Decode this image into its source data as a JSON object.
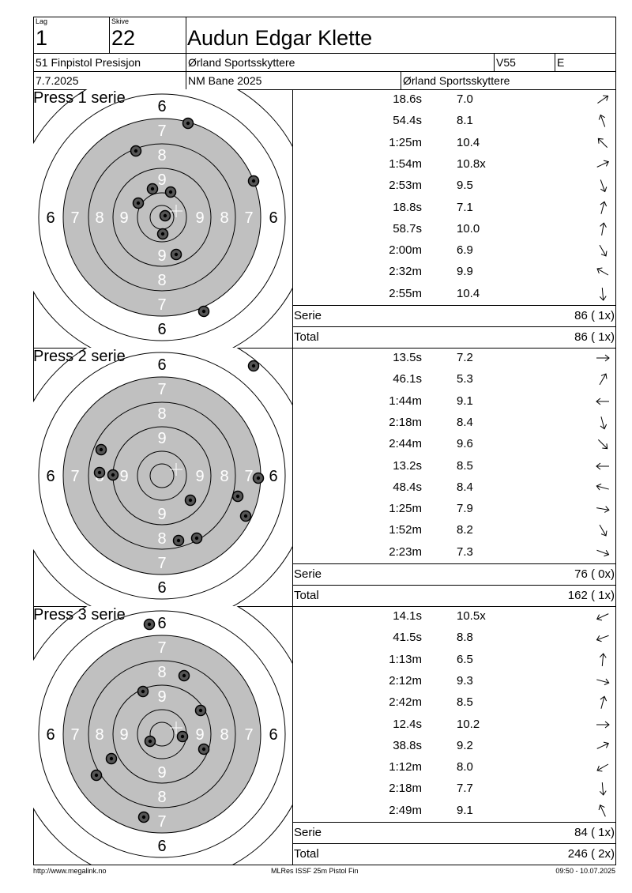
{
  "header": {
    "lag_label": "Lag",
    "lag_value": "1",
    "skive_label": "Skive",
    "skive_value": "22",
    "shooter_name": "Audun Edgar Klette",
    "competition": "51 Finpistol Presisjon",
    "club": "Ørland Sportsskyttere",
    "class": "V55",
    "group": "E",
    "date": "7.7.2025",
    "venue": "NM Bane 2025",
    "host": "Ørland Sportsskyttere"
  },
  "target_labels": {
    "ring6": "6",
    "ring7": "7",
    "ring8": "8",
    "ring9": "9"
  },
  "series": [
    {
      "title": "Press 1 serie",
      "shots": [
        {
          "time": "18.6s",
          "value": "7.0",
          "dir": "↗",
          "x": 33,
          "y": -119,
          "ang": -35
        },
        {
          "time": "54.4s",
          "value": "8.1",
          "dir": "↑",
          "x": -33,
          "y": -84,
          "ang": -110
        },
        {
          "time": "1:25m",
          "value": "10.4",
          "dir": "↖",
          "x": -12,
          "y": -36,
          "ang": -135
        },
        {
          "time": "1:54m",
          "value": "10.8x",
          "dir": "↗",
          "x": -30,
          "y": -18,
          "ang": -25
        },
        {
          "time": "2:53m",
          "value": "9.5",
          "dir": "↓",
          "x": 11,
          "y": -32,
          "ang": 70
        },
        {
          "time": "18.8s",
          "value": "7.1",
          "dir": "↑",
          "x": 116,
          "y": -46,
          "ang": -75
        },
        {
          "time": "58.7s",
          "value": "10.0",
          "dir": "↑",
          "x": 4,
          "y": -2,
          "ang": -80
        },
        {
          "time": "2:00m",
          "value": "6.9",
          "dir": "↓",
          "x": 1,
          "y": 21,
          "ang": 60
        },
        {
          "time": "2:32m",
          "value": "9.9",
          "dir": "↖",
          "x": 18,
          "y": 47,
          "ang": -150
        },
        {
          "time": "2:55m",
          "value": "10.4",
          "dir": "↓",
          "x": 53,
          "y": 119,
          "ang": 85
        }
      ],
      "serie_label": "Serie",
      "serie_value": "86 ( 1x)",
      "total_label": "Total",
      "total_value": "86 ( 1x)"
    },
    {
      "title": "Press 2 serie",
      "shots": [
        {
          "time": "13.5s",
          "value": "7.2",
          "dir": "→",
          "x": 116,
          "y": -139,
          "ang": 0
        },
        {
          "time": "46.1s",
          "value": "5.3",
          "dir": "↗",
          "x": -77,
          "y": -33,
          "ang": -60
        },
        {
          "time": "1:44m",
          "value": "9.1",
          "dir": "←",
          "x": -79,
          "y": -4,
          "ang": 180
        },
        {
          "time": "2:18m",
          "value": "8.4",
          "dir": "↓",
          "x": -62,
          "y": -1,
          "ang": 75
        },
        {
          "time": "2:44m",
          "value": "9.6",
          "dir": "↘",
          "x": 36,
          "y": 31,
          "ang": 45
        },
        {
          "time": "13.2s",
          "value": "8.5",
          "dir": "←",
          "x": 122,
          "y": 3,
          "ang": 180
        },
        {
          "time": "48.4s",
          "value": "8.4",
          "dir": "←",
          "x": 96,
          "y": 26,
          "ang": -165
        },
        {
          "time": "1:25m",
          "value": "7.9",
          "dir": "→",
          "x": 106,
          "y": 51,
          "ang": 10
        },
        {
          "time": "1:52m",
          "value": "8.2",
          "dir": "↘",
          "x": 21,
          "y": 82,
          "ang": 60
        },
        {
          "time": "2:23m",
          "value": "7.3",
          "dir": "↘",
          "x": 44,
          "y": 79,
          "ang": 20
        }
      ],
      "serie_label": "Serie",
      "serie_value": "76 ( 0x)",
      "total_label": "Total",
      "total_value": "162 ( 1x)"
    },
    {
      "title": "Press 3 serie",
      "shots": [
        {
          "time": "14.1s",
          "value": "10.5x",
          "dir": "↙",
          "x": -16,
          "y": -139,
          "ang": 155
        },
        {
          "time": "41.5s",
          "value": "8.8",
          "dir": "↙",
          "x": 28,
          "y": -74,
          "ang": 160
        },
        {
          "time": "1:13m",
          "value": "6.5",
          "dir": "↑",
          "x": -24,
          "y": -54,
          "ang": -85
        },
        {
          "time": "2:12m",
          "value": "9.3",
          "dir": "→",
          "x": 49,
          "y": -30,
          "ang": 15
        },
        {
          "time": "2:42m",
          "value": "8.5",
          "dir": "↑",
          "x": 26,
          "y": 3,
          "ang": -75
        },
        {
          "time": "12.4s",
          "value": "10.2",
          "dir": "→",
          "x": -15,
          "y": 9,
          "ang": 0
        },
        {
          "time": "38.8s",
          "value": "9.2",
          "dir": "↗",
          "x": 53,
          "y": 19,
          "ang": -25
        },
        {
          "time": "1:12m",
          "value": "8.0",
          "dir": "↙",
          "x": -64,
          "y": 31,
          "ang": 150
        },
        {
          "time": "2:18m",
          "value": "7.7",
          "dir": "↓",
          "x": -83,
          "y": 52,
          "ang": 85
        },
        {
          "time": "2:49m",
          "value": "9.1",
          "dir": "↖",
          "x": -23,
          "y": 105,
          "ang": -115
        }
      ],
      "serie_label": "Serie",
      "serie_value": "84 ( 1x)",
      "total_label": "Total",
      "total_value": "246 ( 2x)"
    }
  ],
  "footer": {
    "left": "http://www.megalink.no",
    "center": "MLRes ISSF 25m Pistol Fin",
    "right": "09:50 - 10.07.2025"
  },
  "colors": {
    "black_area": "#c0c0c0",
    "ring": "#000000",
    "background": "#ffffff"
  }
}
